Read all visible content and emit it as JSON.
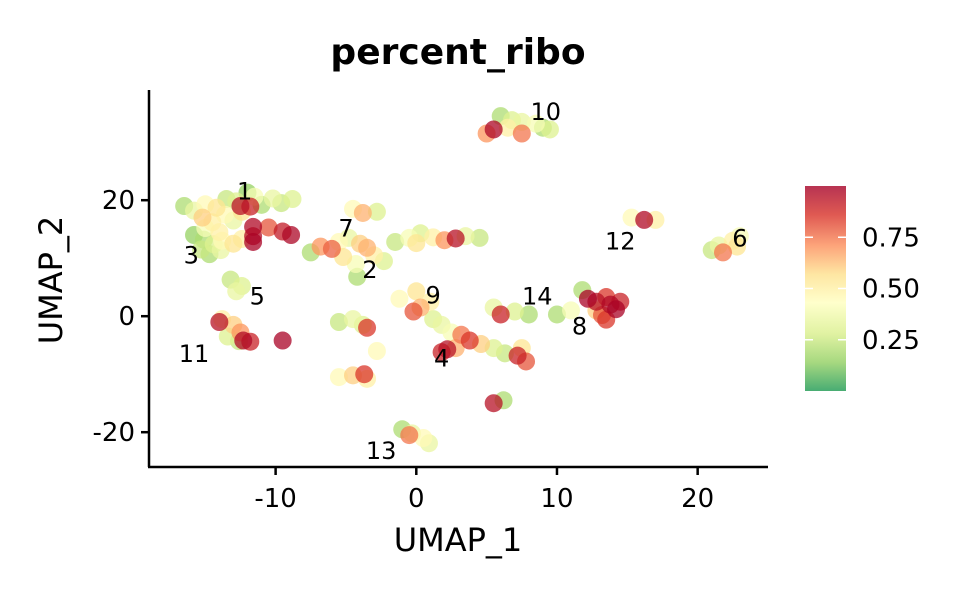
{
  "chart_data": {
    "type": "scatter",
    "title": "percent_ribo",
    "xlabel": "UMAP_1",
    "ylabel": "UMAP_2",
    "xlim": [
      -19,
      25
    ],
    "ylim": [
      -26,
      39
    ],
    "x_ticks": [
      -10,
      0,
      10,
      20
    ],
    "y_ticks": [
      -20,
      0,
      20
    ],
    "x_tick_labels": [
      "-10",
      "0",
      "10",
      "20"
    ],
    "y_tick_labels": [
      "-20",
      "0",
      "20"
    ],
    "grid": false,
    "legend_placement": "right",
    "colorbar": {
      "range": [
        0,
        1
      ],
      "ticks": [
        0.25,
        0.5,
        0.75
      ],
      "tick_labels": [
        "0.25",
        "0.50",
        "0.75"
      ],
      "palette": "RdYlGn (reversed)",
      "colors": [
        "#1a9850",
        "#91cf60",
        "#d9ef8b",
        "#ffffbf",
        "#fee08b",
        "#fc8d59",
        "#d73027",
        "#a50026"
      ]
    },
    "cluster_labels": [
      {
        "text": "1",
        "x": -12.2,
        "y": 21.5
      },
      {
        "text": "2",
        "x": -3.3,
        "y": 8.0
      },
      {
        "text": "3",
        "x": -16.0,
        "y": 10.5
      },
      {
        "text": "4",
        "x": 1.8,
        "y": -7.3
      },
      {
        "text": "5",
        "x": -11.3,
        "y": 3.4
      },
      {
        "text": "6",
        "x": 23.0,
        "y": 13.4
      },
      {
        "text": "7",
        "x": -5.0,
        "y": 15.1
      },
      {
        "text": "8",
        "x": 11.6,
        "y": -1.8
      },
      {
        "text": "9",
        "x": 1.2,
        "y": 3.6
      },
      {
        "text": "10",
        "x": 9.2,
        "y": 35.2
      },
      {
        "text": "11",
        "x": -15.8,
        "y": -6.5
      },
      {
        "text": "12",
        "x": 14.5,
        "y": 12.9
      },
      {
        "text": "13",
        "x": -2.5,
        "y": -23.2
      },
      {
        "text": "14",
        "x": 8.6,
        "y": 3.4
      }
    ],
    "points": [
      {
        "x": -16.5,
        "y": 19,
        "v": 0.2
      },
      {
        "x": -15.8,
        "y": 18.2,
        "v": 0.35
      },
      {
        "x": -15.0,
        "y": 19.3,
        "v": 0.45
      },
      {
        "x": -14.2,
        "y": 18.7,
        "v": 0.55
      },
      {
        "x": -13.5,
        "y": 20.2,
        "v": 0.25
      },
      {
        "x": -12.8,
        "y": 19.8,
        "v": 0.3
      },
      {
        "x": -12.0,
        "y": 21.3,
        "v": 0.15
      },
      {
        "x": -11.5,
        "y": 20.6,
        "v": 0.4
      },
      {
        "x": -11.0,
        "y": 19.2,
        "v": 0.2
      },
      {
        "x": -10.2,
        "y": 20.3,
        "v": 0.35
      },
      {
        "x": -9.6,
        "y": 19.5,
        "v": 0.25
      },
      {
        "x": -8.8,
        "y": 20.2,
        "v": 0.3
      },
      {
        "x": -15.2,
        "y": 17.0,
        "v": 0.6
      },
      {
        "x": -14.5,
        "y": 16.2,
        "v": 0.5
      },
      {
        "x": -13.6,
        "y": 17.5,
        "v": 0.45
      },
      {
        "x": -13.0,
        "y": 16.5,
        "v": 0.35
      },
      {
        "x": -12.4,
        "y": 18.0,
        "v": 0.55
      },
      {
        "x": -12.5,
        "y": 19.0,
        "v": 0.95
      },
      {
        "x": -11.8,
        "y": 18.9,
        "v": 0.9
      },
      {
        "x": -11.6,
        "y": 15.4,
        "v": 0.97
      },
      {
        "x": -10.5,
        "y": 15.3,
        "v": 0.8
      },
      {
        "x": -9.5,
        "y": 14.6,
        "v": 0.92
      },
      {
        "x": -8.9,
        "y": 14.0,
        "v": 0.98
      },
      {
        "x": -11.6,
        "y": 13.8,
        "v": 0.96
      },
      {
        "x": -11.6,
        "y": 12.8,
        "v": 0.99
      },
      {
        "x": -15.8,
        "y": 14.0,
        "v": 0.15
      },
      {
        "x": -15.1,
        "y": 13.2,
        "v": 0.2
      },
      {
        "x": -14.4,
        "y": 12.4,
        "v": 0.3
      },
      {
        "x": -13.8,
        "y": 13.0,
        "v": 0.45
      },
      {
        "x": -13.0,
        "y": 12.5,
        "v": 0.55
      },
      {
        "x": -12.4,
        "y": 13.3,
        "v": 0.5
      },
      {
        "x": -15.3,
        "y": 11.5,
        "v": 0.25
      },
      {
        "x": -14.7,
        "y": 10.7,
        "v": 0.2
      },
      {
        "x": -13.9,
        "y": 11.4,
        "v": 0.35
      },
      {
        "x": -15.0,
        "y": 15.2,
        "v": 0.4
      },
      {
        "x": -14.0,
        "y": 14.5,
        "v": 0.5
      },
      {
        "x": -13.2,
        "y": 6.3,
        "v": 0.25
      },
      {
        "x": -12.4,
        "y": 5.2,
        "v": 0.3
      },
      {
        "x": -12.8,
        "y": 4.3,
        "v": 0.35
      },
      {
        "x": -13.8,
        "y": -0.5,
        "v": 0.5
      },
      {
        "x": -13.0,
        "y": -1.5,
        "v": 0.6
      },
      {
        "x": -12.5,
        "y": -2.8,
        "v": 0.7
      },
      {
        "x": -13.4,
        "y": -3.5,
        "v": 0.3
      },
      {
        "x": -12.6,
        "y": -4.3,
        "v": 0.25
      },
      {
        "x": -14.0,
        "y": -1.0,
        "v": 0.95
      },
      {
        "x": -12.3,
        "y": -4.2,
        "v": 0.97
      },
      {
        "x": -11.8,
        "y": -4.4,
        "v": 0.9
      },
      {
        "x": -9.5,
        "y": -4.2,
        "v": 0.99
      },
      {
        "x": -7.5,
        "y": 11.0,
        "v": 0.2
      },
      {
        "x": -6.8,
        "y": 12.0,
        "v": 0.7
      },
      {
        "x": -6.0,
        "y": 11.6,
        "v": 0.78
      },
      {
        "x": -5.5,
        "y": 12.8,
        "v": 0.45
      },
      {
        "x": -4.8,
        "y": 13.5,
        "v": 0.35
      },
      {
        "x": -4.0,
        "y": 12.5,
        "v": 0.6
      },
      {
        "x": -3.5,
        "y": 11.8,
        "v": 0.65
      },
      {
        "x": -3.0,
        "y": 10.5,
        "v": 0.5
      },
      {
        "x": -2.3,
        "y": 9.5,
        "v": 0.3
      },
      {
        "x": -4.3,
        "y": 9.0,
        "v": 0.4
      },
      {
        "x": -5.2,
        "y": 10.2,
        "v": 0.55
      },
      {
        "x": -4.2,
        "y": 6.8,
        "v": 0.2
      },
      {
        "x": -3.8,
        "y": 17.8,
        "v": 0.65
      },
      {
        "x": -4.5,
        "y": 18.5,
        "v": 0.45
      },
      {
        "x": -2.8,
        "y": 18.0,
        "v": 0.3
      },
      {
        "x": -1.5,
        "y": 12.8,
        "v": 0.25
      },
      {
        "x": -0.5,
        "y": 13.5,
        "v": 0.4
      },
      {
        "x": 0.3,
        "y": 14.3,
        "v": 0.3
      },
      {
        "x": 1.2,
        "y": 13.6,
        "v": 0.5
      },
      {
        "x": 2.0,
        "y": 13.1,
        "v": 0.7
      },
      {
        "x": 2.8,
        "y": 13.4,
        "v": 0.95
      },
      {
        "x": 3.5,
        "y": 13.8,
        "v": 0.35
      },
      {
        "x": 4.5,
        "y": 13.5,
        "v": 0.25
      },
      {
        "x": 0.0,
        "y": 12.6,
        "v": 0.55
      },
      {
        "x": -5.5,
        "y": -1.0,
        "v": 0.25
      },
      {
        "x": -4.5,
        "y": -0.5,
        "v": 0.35
      },
      {
        "x": -3.8,
        "y": -1.5,
        "v": 0.3
      },
      {
        "x": -3.5,
        "y": -2.0,
        "v": 0.85
      },
      {
        "x": -2.8,
        "y": -6.0,
        "v": 0.45
      },
      {
        "x": -5.5,
        "y": -10.5,
        "v": 0.45
      },
      {
        "x": -4.5,
        "y": -10.2,
        "v": 0.6
      },
      {
        "x": -3.7,
        "y": -10.0,
        "v": 0.85
      },
      {
        "x": -3.5,
        "y": -10.8,
        "v": 0.5
      },
      {
        "x": -1.2,
        "y": 3.0,
        "v": 0.45
      },
      {
        "x": 0.0,
        "y": 4.3,
        "v": 0.55
      },
      {
        "x": 0.3,
        "y": 1.5,
        "v": 0.65
      },
      {
        "x": -0.2,
        "y": 0.8,
        "v": 0.8
      },
      {
        "x": 1.0,
        "y": 2.5,
        "v": 0.5
      },
      {
        "x": 1.2,
        "y": -0.5,
        "v": 0.3
      },
      {
        "x": 1.8,
        "y": -1.5,
        "v": 0.35
      },
      {
        "x": 2.5,
        "y": -2.8,
        "v": 0.4
      },
      {
        "x": 3.2,
        "y": -3.2,
        "v": 0.75
      },
      {
        "x": 3.8,
        "y": -4.2,
        "v": 0.85
      },
      {
        "x": 4.6,
        "y": -4.8,
        "v": 0.6
      },
      {
        "x": 2.2,
        "y": -5.7,
        "v": 0.95
      },
      {
        "x": 1.8,
        "y": -6.2,
        "v": 0.9
      },
      {
        "x": 2.8,
        "y": -5.5,
        "v": 0.65
      },
      {
        "x": 5.5,
        "y": -5.5,
        "v": 0.3
      },
      {
        "x": 6.3,
        "y": -6.4,
        "v": 0.25
      },
      {
        "x": 7.2,
        "y": -6.8,
        "v": 0.9
      },
      {
        "x": 7.8,
        "y": -7.8,
        "v": 0.8
      },
      {
        "x": 7.5,
        "y": -5.5,
        "v": 0.55
      },
      {
        "x": 5.5,
        "y": 1.5,
        "v": 0.35
      },
      {
        "x": 6.0,
        "y": 0.3,
        "v": 0.9
      },
      {
        "x": 7.0,
        "y": 0.8,
        "v": 0.3
      },
      {
        "x": 8.0,
        "y": 0.3,
        "v": 0.2
      },
      {
        "x": 10.0,
        "y": 0.3,
        "v": 0.2
      },
      {
        "x": 11.0,
        "y": 1.0,
        "v": 0.4
      },
      {
        "x": 11.8,
        "y": 4.5,
        "v": 0.2
      },
      {
        "x": 12.2,
        "y": 3.0,
        "v": 0.99
      },
      {
        "x": 12.8,
        "y": 2.5,
        "v": 0.95
      },
      {
        "x": 13.5,
        "y": 3.3,
        "v": 0.85
      },
      {
        "x": 13.8,
        "y": 2.0,
        "v": 0.97
      },
      {
        "x": 14.2,
        "y": 1.2,
        "v": 0.99
      },
      {
        "x": 14.5,
        "y": 2.5,
        "v": 0.9
      },
      {
        "x": 13.2,
        "y": 0.2,
        "v": 0.8
      },
      {
        "x": 13.5,
        "y": -0.6,
        "v": 0.85
      },
      {
        "x": 12.8,
        "y": 1.0,
        "v": 0.6
      },
      {
        "x": 5.5,
        "y": -15.0,
        "v": 0.95
      },
      {
        "x": 6.2,
        "y": -14.5,
        "v": 0.2
      },
      {
        "x": -1.0,
        "y": -19.5,
        "v": 0.2
      },
      {
        "x": -0.3,
        "y": -20.2,
        "v": 0.35
      },
      {
        "x": 0.5,
        "y": -21.0,
        "v": 0.45
      },
      {
        "x": 0.9,
        "y": -21.9,
        "v": 0.35
      },
      {
        "x": -0.5,
        "y": -20.5,
        "v": 0.75
      },
      {
        "x": 6.0,
        "y": 34.5,
        "v": 0.2
      },
      {
        "x": 6.8,
        "y": 33.8,
        "v": 0.3
      },
      {
        "x": 7.5,
        "y": 33.5,
        "v": 0.35
      },
      {
        "x": 8.5,
        "y": 33.2,
        "v": 0.4
      },
      {
        "x": 9.0,
        "y": 32.5,
        "v": 0.2
      },
      {
        "x": 9.5,
        "y": 32.2,
        "v": 0.3
      },
      {
        "x": 5.0,
        "y": 31.5,
        "v": 0.7
      },
      {
        "x": 5.5,
        "y": 32.2,
        "v": 0.98
      },
      {
        "x": 6.5,
        "y": 32.5,
        "v": 0.5
      },
      {
        "x": 7.5,
        "y": 31.5,
        "v": 0.75
      },
      {
        "x": 15.3,
        "y": 17.0,
        "v": 0.45
      },
      {
        "x": 16.2,
        "y": 16.6,
        "v": 0.97
      },
      {
        "x": 17.0,
        "y": 16.6,
        "v": 0.5
      },
      {
        "x": 21.0,
        "y": 11.4,
        "v": 0.25
      },
      {
        "x": 21.5,
        "y": 12.2,
        "v": 0.35
      },
      {
        "x": 21.8,
        "y": 11.0,
        "v": 0.75
      },
      {
        "x": 22.5,
        "y": 13.0,
        "v": 0.5
      },
      {
        "x": 22.8,
        "y": 12.0,
        "v": 0.55
      },
      {
        "x": 23.0,
        "y": 13.8,
        "v": 0.4
      }
    ]
  }
}
